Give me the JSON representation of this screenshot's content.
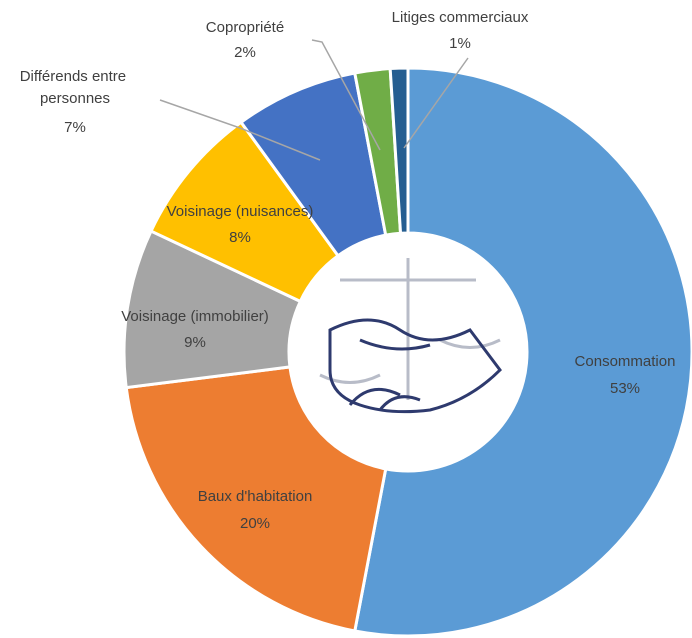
{
  "chart_data": {
    "type": "donut",
    "categories": [
      "Consommation",
      "Baux d'habitation",
      "Voisinage (immobilier)",
      "Voisinage (nuisances)",
      "Différends entre personnes",
      "Copropriété",
      "Litiges commerciaux"
    ],
    "values": [
      53,
      20,
      9,
      8,
      7,
      2,
      1
    ],
    "value_labels": [
      "53%",
      "20%",
      "9%",
      "8%",
      "7%",
      "2%",
      "1%"
    ],
    "colors": [
      "#5b9bd5",
      "#ed7d31",
      "#a5a5a5",
      "#ffc000",
      "#4472c4",
      "#70ad47",
      "#255e91"
    ]
  }
}
